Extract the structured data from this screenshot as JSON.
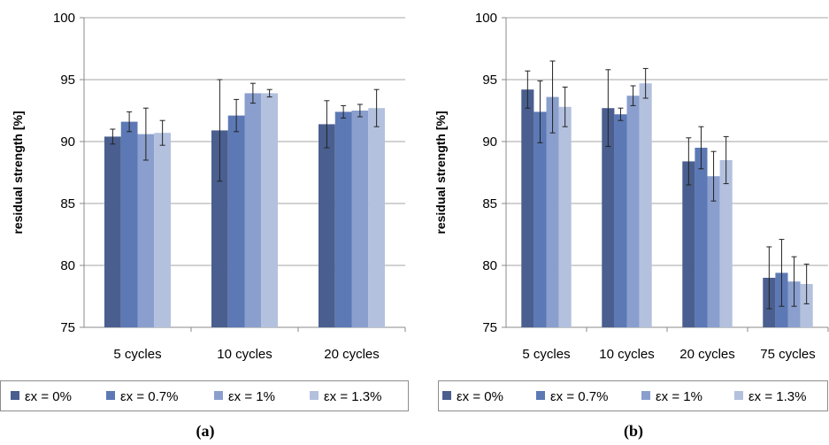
{
  "colors": {
    "series": [
      "#4a5f8f",
      "#5c79b5",
      "#8a9fcd",
      "#b3c1de"
    ],
    "grid": "#a6a6a6",
    "axis": "#888888",
    "error_bar": "#222222"
  },
  "chart_data": [
    {
      "type": "bar",
      "panel_label": "(a)",
      "ylabel": "residual strength [%]",
      "ylim": [
        75,
        100
      ],
      "yticks": [
        "75",
        "80",
        "85",
        "90",
        "95",
        "100"
      ],
      "grid": true,
      "legend_position": "bottom",
      "categories": [
        "5 cycles",
        "10 cycles",
        "20 cycles"
      ],
      "series": [
        {
          "name": "εx = 0%",
          "values": [
            90.4,
            90.9,
            91.4
          ],
          "errors": [
            0.6,
            4.1,
            1.9
          ]
        },
        {
          "name": "εx = 0.7%",
          "values": [
            91.6,
            92.1,
            92.4
          ],
          "errors": [
            0.8,
            1.3,
            0.5
          ]
        },
        {
          "name": "εx = 1%",
          "values": [
            90.6,
            93.9,
            92.5
          ],
          "errors": [
            2.1,
            0.8,
            0.5
          ]
        },
        {
          "name": "εx = 1.3%",
          "values": [
            90.7,
            93.9,
            92.7
          ],
          "errors": [
            1.0,
            0.3,
            1.5
          ]
        }
      ]
    },
    {
      "type": "bar",
      "panel_label": "(b)",
      "ylabel": "residual strength [%]",
      "ylim": [
        75,
        100
      ],
      "yticks": [
        "75",
        "80",
        "85",
        "90",
        "95",
        "100"
      ],
      "grid": true,
      "legend_position": "bottom",
      "categories": [
        "5 cycles",
        "10 cycles",
        "20 cycles",
        "75 cycles"
      ],
      "series": [
        {
          "name": "εx = 0%",
          "values": [
            94.2,
            92.7,
            88.4,
            79.0
          ],
          "errors": [
            1.5,
            3.1,
            1.9,
            2.5
          ]
        },
        {
          "name": "εx = 0.7%",
          "values": [
            92.4,
            92.2,
            89.5,
            79.4
          ],
          "errors": [
            2.5,
            0.5,
            1.7,
            2.7
          ]
        },
        {
          "name": "εx = 1%",
          "values": [
            93.6,
            93.7,
            87.2,
            78.7
          ],
          "errors": [
            2.9,
            0.8,
            2.0,
            2.0
          ]
        },
        {
          "name": "εx = 1.3%",
          "values": [
            92.8,
            94.7,
            88.5,
            78.5
          ],
          "errors": [
            1.6,
            1.2,
            1.9,
            1.6
          ]
        }
      ]
    }
  ]
}
